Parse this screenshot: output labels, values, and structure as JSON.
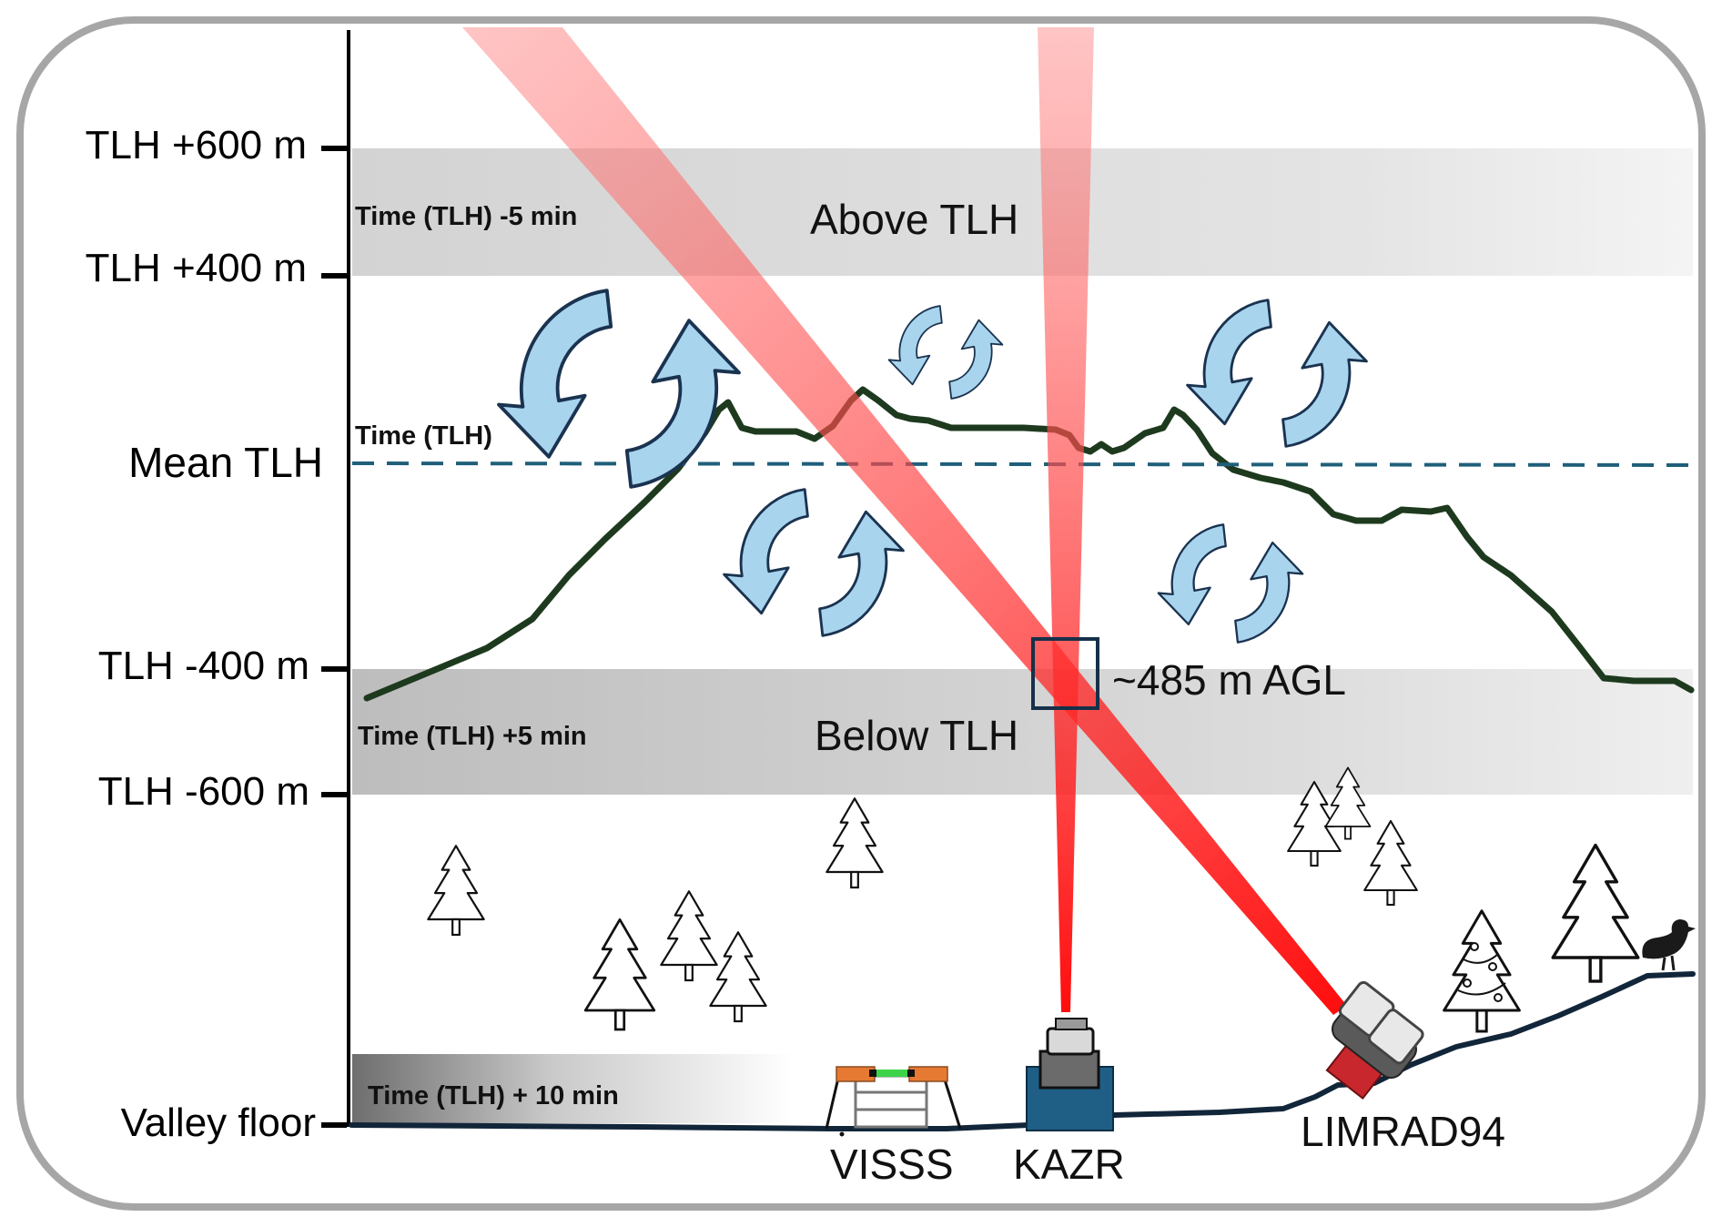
{
  "axis": {
    "ticks": [
      {
        "id": "tlh-600-above",
        "label": "TLH +600 m"
      },
      {
        "id": "tlh-400-above",
        "label": "TLH +400 m"
      },
      {
        "id": "mean-tlh",
        "label": "Mean TLH"
      },
      {
        "id": "tlh-400-below",
        "label": "TLH -400 m"
      },
      {
        "id": "tlh-600-below",
        "label": "TLH -600 m"
      },
      {
        "id": "valley-floor",
        "label": "Valley floor"
      }
    ]
  },
  "bands": {
    "above": {
      "title": "Above TLH",
      "time": "Time (TLH) -5 min"
    },
    "mean": {
      "time": "Time (TLH)"
    },
    "below": {
      "title": "Below TLH",
      "time": "Time (TLH) +5 min"
    },
    "valley": {
      "time": "Time (TLH) + 10 min"
    }
  },
  "annotation": {
    "box_label": "~485 m AGL"
  },
  "instruments": {
    "visss": "VISSS",
    "kazr": "KAZR",
    "limrad": "LIMRAD94"
  },
  "colors": {
    "frame": "#a6a6a6",
    "band": "#d9d9d9",
    "mountain": "#1e3a1e",
    "mean_line": "#1f5f7a",
    "beam": "#ff2a2a",
    "arrow_fill": "#a9d4ee",
    "arrow_stroke": "#1a3350",
    "kazr_body": "#1f5f85",
    "ground": "#12263a"
  }
}
